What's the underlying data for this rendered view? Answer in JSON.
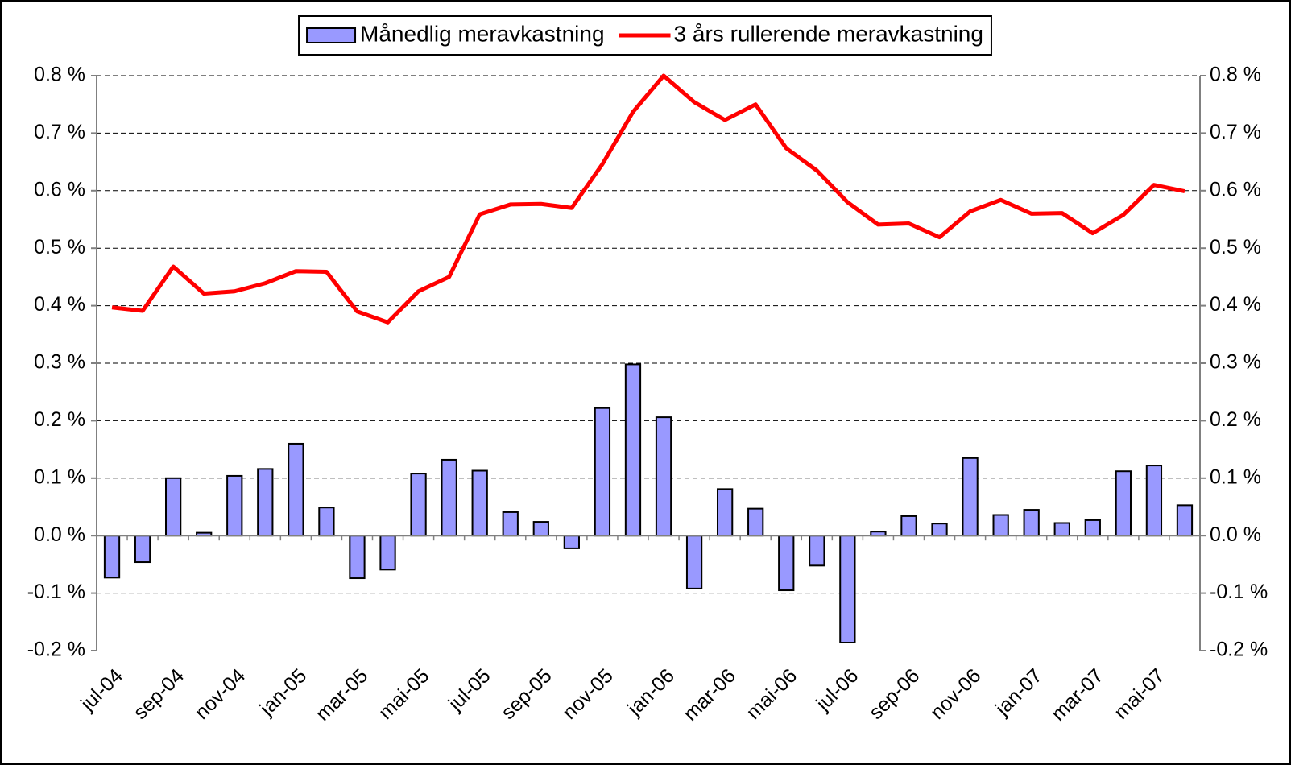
{
  "chart_data": {
    "type": "bar_line",
    "categories": [
      "jul-04",
      null,
      "sep-04",
      null,
      "nov-04",
      null,
      "jan-05",
      null,
      "mar-05",
      null,
      "mai-05",
      null,
      "jul-05",
      null,
      "sep-05",
      null,
      "nov-05",
      null,
      "jan-06",
      null,
      "mar-06",
      null,
      "mai-06",
      null,
      "jul-06",
      null,
      "sep-06",
      null,
      "nov-06",
      null,
      "jan-07",
      null,
      "mar-07",
      null,
      "mai-07",
      null
    ],
    "series": [
      {
        "name": "Månedlig meravkastning",
        "type": "bar",
        "color": "#9999ff",
        "axis": "y",
        "values": [
          -0.073,
          -0.046,
          0.1,
          0.005,
          0.104,
          0.116,
          0.16,
          0.049,
          -0.074,
          -0.059,
          0.108,
          0.132,
          0.113,
          0.041,
          0.024,
          -0.022,
          0.222,
          0.298,
          0.206,
          -0.092,
          0.081,
          0.047,
          -0.095,
          -0.052,
          -0.186,
          0.007,
          0.034,
          0.021,
          0.135,
          0.036,
          0.045,
          0.022,
          0.027,
          0.112,
          0.122,
          0.053
        ]
      },
      {
        "name": "3 års rullerende meravkastning",
        "type": "line",
        "color": "#ff0000",
        "axis": "y2",
        "values": [
          0.397,
          0.391,
          0.468,
          0.421,
          0.425,
          0.439,
          0.46,
          0.459,
          0.39,
          0.371,
          0.425,
          0.45,
          0.559,
          0.576,
          0.577,
          0.57,
          0.646,
          0.737,
          0.8,
          0.754,
          0.723,
          0.75,
          0.674,
          0.635,
          0.58,
          0.541,
          0.543,
          0.519,
          0.564,
          0.584,
          0.56,
          0.561,
          0.526,
          0.558,
          0.61,
          0.599
        ]
      }
    ],
    "ylim": [
      -0.2,
      0.8
    ],
    "yticks": [
      {
        "value": -0.2,
        "label": "-0.2 %"
      },
      {
        "value": -0.1,
        "label": "-0.1 %"
      },
      {
        "value": 0,
        "label": "0.0 %"
      },
      {
        "value": 0.1,
        "label": "0.1 %"
      },
      {
        "value": 0.2,
        "label": "0.2 %"
      },
      {
        "value": 0.3,
        "label": "0.3 %"
      },
      {
        "value": 0.4,
        "label": "0.4 %"
      },
      {
        "value": 0.5,
        "label": "0.5 %"
      },
      {
        "value": 0.6,
        "label": "0.6 %"
      },
      {
        "value": 0.7,
        "label": "0.7 %"
      },
      {
        "value": 0.8,
        "label": "0.8 %"
      }
    ],
    "y2lim": [
      -0.2,
      0.8
    ],
    "y2ticks": [
      {
        "value": -0.2,
        "label": "-0.2 %"
      },
      {
        "value": -0.1,
        "label": "-0.1 %"
      },
      {
        "value": 0,
        "label": "0.0 %"
      },
      {
        "value": 0.1,
        "label": "0.1 %"
      },
      {
        "value": 0.2,
        "label": "0.2 %"
      },
      {
        "value": 0.3,
        "label": "0.3 %"
      },
      {
        "value": 0.4,
        "label": "0.4 %"
      },
      {
        "value": 0.5,
        "label": "0.5 %"
      },
      {
        "value": 0.6,
        "label": "0.6 %"
      },
      {
        "value": 0.7,
        "label": "0.7 %"
      },
      {
        "value": 0.8,
        "label": "0.8 %"
      }
    ],
    "grid": true,
    "legend": "top"
  }
}
